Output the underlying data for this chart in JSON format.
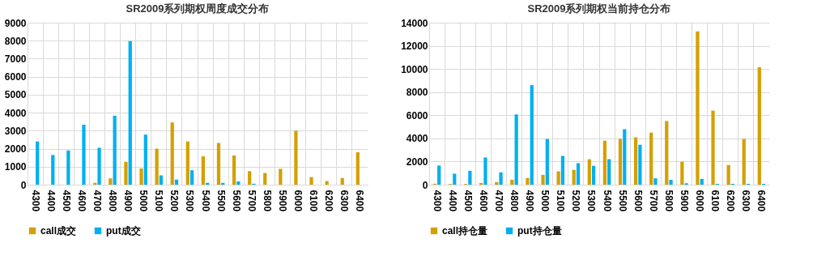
{
  "chart_data": [
    {
      "type": "bar",
      "title": "SR2009系列期权周度成交分布",
      "categories": [
        "4300",
        "4400",
        "4500",
        "4600",
        "4700",
        "4800",
        "4900",
        "5000",
        "5100",
        "5200",
        "5300",
        "5400",
        "5500",
        "5600",
        "5700",
        "5800",
        "5900",
        "6000",
        "6100",
        "6200",
        "6300",
        "6400"
      ],
      "series": [
        {
          "name": "call成交",
          "color": "#d4a000",
          "values": [
            0,
            0,
            0,
            0,
            100,
            350,
            1270,
            900,
            2000,
            3460,
            2400,
            1580,
            2320,
            1620,
            750,
            650,
            880,
            3000,
            420,
            200,
            370,
            1800
          ]
        },
        {
          "name": "put成交",
          "color": "#00b0f0",
          "values": [
            2400,
            1650,
            1900,
            3330,
            2050,
            3830,
            7980,
            2780,
            520,
            280,
            800,
            100,
            100,
            180,
            50,
            0,
            0,
            0,
            0,
            0,
            0,
            0
          ]
        }
      ],
      "ylim": [
        0,
        9000
      ],
      "yticks": [
        0,
        1000,
        2000,
        3000,
        4000,
        5000,
        6000,
        7000,
        8000,
        9000
      ],
      "grid": true,
      "legend": "bottom"
    },
    {
      "type": "bar",
      "title": "SR2009系列期权当前持仓分布",
      "categories": [
        "4300",
        "4400",
        "4500",
        "4600",
        "4700",
        "4800",
        "4900",
        "5000",
        "5100",
        "5200",
        "5300",
        "5400",
        "5500",
        "5600",
        "5700",
        "5800",
        "5900",
        "6000",
        "6100",
        "6200",
        "6300",
        "6400"
      ],
      "series": [
        {
          "name": "call持仓量",
          "color": "#d4a000",
          "values": [
            80,
            60,
            60,
            150,
            220,
            430,
            580,
            850,
            1150,
            1280,
            2200,
            3800,
            3950,
            4100,
            4500,
            5500,
            1980,
            13250,
            6400,
            1700,
            3950,
            10150
          ]
        },
        {
          "name": "put持仓量",
          "color": "#00b0f0",
          "values": [
            1650,
            950,
            1200,
            2350,
            1070,
            6070,
            8600,
            3950,
            2480,
            1850,
            1630,
            2200,
            4800,
            3450,
            550,
            420,
            120,
            500,
            70,
            70,
            70,
            70
          ]
        }
      ],
      "ylim": [
        0,
        14000
      ],
      "yticks": [
        0,
        2000,
        4000,
        6000,
        8000,
        10000,
        12000,
        14000
      ],
      "grid": true,
      "legend": "bottom"
    }
  ]
}
